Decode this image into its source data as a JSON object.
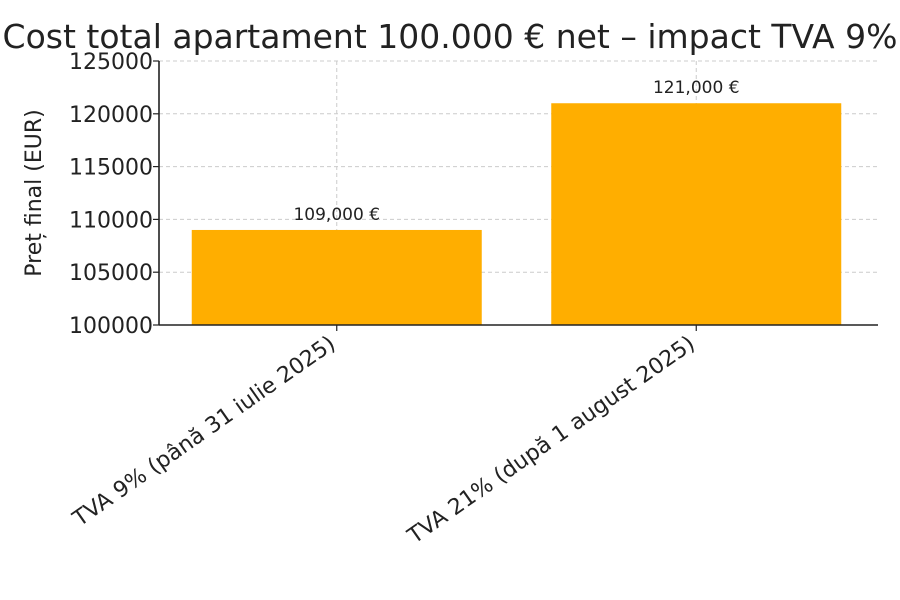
{
  "chart_data": {
    "type": "bar",
    "title": "Cost total apartament 100.000 € net – impact TVA 9%",
    "xlabel": "",
    "ylabel": "Preț final (EUR)",
    "categories": [
      "TVA 9% (până 31 iulie 2025)",
      "TVA 21% (după 1 august 2025)"
    ],
    "values": [
      109000,
      121000
    ],
    "data_labels": [
      "109,000 €",
      "121,000 €"
    ],
    "ylim": [
      100000,
      125000
    ],
    "yticks": [
      100000,
      105000,
      110000,
      115000,
      120000,
      125000
    ],
    "ytick_labels": [
      "100000",
      "105000",
      "110000",
      "115000",
      "120000",
      "125000"
    ],
    "grid": true,
    "bar_color": "#FFAE00",
    "grid_color": "#cccccc",
    "axis_color": "#222222"
  }
}
